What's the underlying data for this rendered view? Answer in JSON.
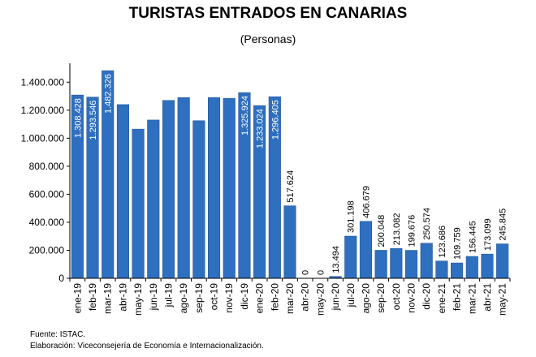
{
  "title": "TURISTAS ENTRADOS EN CANARIAS",
  "subtitle": "(Personas)",
  "footer": {
    "source": "Fuente: ISTAC.",
    "credit": "Elaboración: Viceconsejería de Economía e Internacionalización."
  },
  "colors": {
    "bar": "#2e6fbf",
    "bar_edge": "#1f4f8f",
    "label_inside": "#ffffff",
    "label_outside": "#000000",
    "grid": "#d9d9d9"
  },
  "chart_data": {
    "type": "bar",
    "categories": [
      "ene-19",
      "feb-19",
      "mar-19",
      "abr-19",
      "may-19",
      "jun-19",
      "jul-19",
      "ago-19",
      "sep-19",
      "oct-19",
      "nov-19",
      "dic-19",
      "ene-20",
      "feb-20",
      "mar-20",
      "abr-20",
      "may-20",
      "jun-20",
      "jul-20",
      "ago-20",
      "sep-20",
      "oct-20",
      "nov-20",
      "dic-20",
      "ene-21",
      "feb-21",
      "mar-21",
      "abr-21",
      "may-21"
    ],
    "values": [
      1308428,
      1293546,
      1482326,
      1240000,
      1065000,
      1130000,
      1270000,
      1290000,
      1125000,
      1290000,
      1285000,
      1325924,
      1233024,
      1296405,
      517624,
      0,
      0,
      13494,
      301198,
      406679,
      200048,
      213082,
      199676,
      250574,
      123686,
      109759,
      156445,
      173099,
      245845
    ],
    "data_labels": [
      "1.308.428",
      "1.293.546",
      "1.482.326",
      "",
      "",
      "",
      "",
      "",
      "",
      "",
      "",
      "1.325.924",
      "1.233.024",
      "1.296.405",
      "517.624",
      "0",
      "0",
      "13.494",
      "301.198",
      "406.679",
      "200.048",
      "213.082",
      "199.676",
      "250.574",
      "123.686",
      "109.759",
      "156.445",
      "173.099",
      "245.845"
    ],
    "y_ticks": [
      0,
      200000,
      400000,
      600000,
      800000,
      1000000,
      1200000,
      1400000
    ],
    "y_tick_labels": [
      "0",
      "200.000",
      "400.000",
      "600.000",
      "800.000",
      "1.000.000",
      "1.200.000",
      "1.400.000"
    ],
    "ylim": [
      0,
      1500000
    ],
    "xlabel": "",
    "ylabel": "",
    "grid": false,
    "legend": "none"
  }
}
